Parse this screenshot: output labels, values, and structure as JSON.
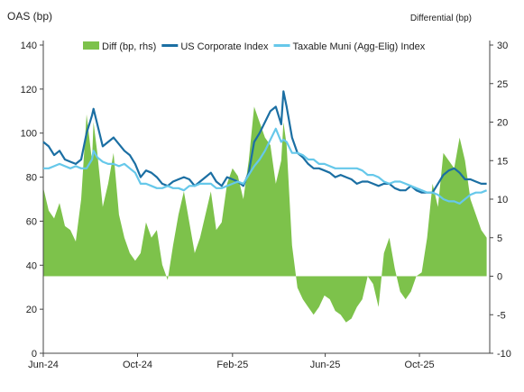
{
  "chart_data": {
    "type": "line",
    "title": "",
    "ylabel_left": "OAS (bp)",
    "ylabel_right": "Differential (bp)",
    "ylim_left": [
      0,
      140
    ],
    "ylim_right": [
      -10,
      30
    ],
    "yticks_left": [
      "0",
      "20",
      "40",
      "60",
      "80",
      "100",
      "120",
      "140"
    ],
    "yticks_right": [
      "-10",
      "-5",
      "0",
      "5",
      "10",
      "15",
      "20",
      "25",
      "30"
    ],
    "xlim": [
      "2024-06-01",
      "2025-12-31"
    ],
    "xticks": [
      {
        "label": "Jun-24",
        "date": "2024-06-01"
      },
      {
        "label": "Oct-24",
        "date": "2024-10-01"
      },
      {
        "label": "Feb-25",
        "date": "2025-02-01"
      },
      {
        "label": "Jun-25",
        "date": "2025-06-01"
      },
      {
        "label": "Oct-25",
        "date": "2025-10-01"
      }
    ],
    "legend_position": "top",
    "grid": false,
    "series": [
      {
        "name": "Diff (bp, rhs)",
        "kind": "area",
        "axis": "right",
        "color": "#7dc24b",
        "x": [
          "2024-06-01",
          "2024-06-08",
          "2024-06-15",
          "2024-06-22",
          "2024-06-29",
          "2024-07-06",
          "2024-07-13",
          "2024-07-20",
          "2024-07-27",
          "2024-08-03",
          "2024-08-05",
          "2024-08-10",
          "2024-08-17",
          "2024-08-24",
          "2024-08-31",
          "2024-09-07",
          "2024-09-14",
          "2024-09-21",
          "2024-09-28",
          "2024-10-05",
          "2024-10-12",
          "2024-10-19",
          "2024-10-26",
          "2024-11-02",
          "2024-11-09",
          "2024-11-16",
          "2024-11-23",
          "2024-11-30",
          "2024-12-07",
          "2024-12-14",
          "2024-12-21",
          "2024-12-28",
          "2025-01-04",
          "2025-01-11",
          "2025-01-18",
          "2025-01-25",
          "2025-02-01",
          "2025-02-08",
          "2025-02-15",
          "2025-02-22",
          "2025-03-01",
          "2025-03-08",
          "2025-03-15",
          "2025-03-22",
          "2025-03-29",
          "2025-04-05",
          "2025-04-08",
          "2025-04-12",
          "2025-04-19",
          "2025-04-26",
          "2025-05-03",
          "2025-05-10",
          "2025-05-17",
          "2025-05-24",
          "2025-05-31",
          "2025-06-07",
          "2025-06-14",
          "2025-06-21",
          "2025-06-28",
          "2025-07-05",
          "2025-07-12",
          "2025-07-19",
          "2025-07-26",
          "2025-08-02",
          "2025-08-09",
          "2025-08-16",
          "2025-08-23",
          "2025-08-30",
          "2025-09-06",
          "2025-09-13",
          "2025-09-20",
          "2025-09-27",
          "2025-10-04",
          "2025-10-11",
          "2025-10-18",
          "2025-10-25",
          "2025-11-01",
          "2025-11-08",
          "2025-11-15",
          "2025-11-22",
          "2025-11-29",
          "2025-12-06",
          "2025-12-13",
          "2025-12-20",
          "2025-12-27"
        ],
        "values": [
          11.5,
          8.5,
          7.5,
          9.5,
          6.5,
          6,
          4.5,
          10,
          21,
          15,
          20,
          16,
          9,
          12,
          16,
          8,
          5,
          3,
          2,
          3,
          7,
          5,
          6,
          1.5,
          -0.5,
          4,
          8,
          11,
          7,
          3,
          5,
          8,
          11,
          6,
          7,
          12,
          14,
          13,
          10,
          15,
          22,
          20,
          18,
          17,
          12,
          15,
          20,
          17,
          4,
          -1.5,
          -3,
          -4,
          -5,
          -4,
          -2.5,
          -3,
          -4.5,
          -5,
          -6,
          -5.5,
          -4,
          -3,
          0,
          -1,
          -4,
          3,
          5,
          1,
          -2,
          -3,
          -2,
          0,
          0.5,
          5,
          12,
          9,
          16,
          15,
          14,
          18,
          15,
          10,
          8,
          6,
          5
        ]
      },
      {
        "name": "US Corporate Index",
        "kind": "line",
        "axis": "left",
        "color": "#1b6fa3",
        "x": [
          "2024-06-01",
          "2024-06-08",
          "2024-06-15",
          "2024-06-22",
          "2024-06-29",
          "2024-07-06",
          "2024-07-13",
          "2024-07-20",
          "2024-07-27",
          "2024-08-03",
          "2024-08-05",
          "2024-08-10",
          "2024-08-17",
          "2024-08-24",
          "2024-08-31",
          "2024-09-07",
          "2024-09-14",
          "2024-09-21",
          "2024-09-28",
          "2024-10-05",
          "2024-10-12",
          "2024-10-19",
          "2024-10-26",
          "2024-11-02",
          "2024-11-09",
          "2024-11-16",
          "2024-11-23",
          "2024-11-30",
          "2024-12-07",
          "2024-12-14",
          "2024-12-21",
          "2024-12-28",
          "2025-01-04",
          "2025-01-11",
          "2025-01-18",
          "2025-01-25",
          "2025-02-01",
          "2025-02-08",
          "2025-02-15",
          "2025-02-22",
          "2025-03-01",
          "2025-03-08",
          "2025-03-15",
          "2025-03-22",
          "2025-03-29",
          "2025-04-05",
          "2025-04-08",
          "2025-04-12",
          "2025-04-19",
          "2025-04-26",
          "2025-05-03",
          "2025-05-10",
          "2025-05-17",
          "2025-05-24",
          "2025-05-31",
          "2025-06-07",
          "2025-06-14",
          "2025-06-21",
          "2025-06-28",
          "2025-07-05",
          "2025-07-12",
          "2025-07-19",
          "2025-07-26",
          "2025-08-02",
          "2025-08-09",
          "2025-08-16",
          "2025-08-23",
          "2025-08-30",
          "2025-09-06",
          "2025-09-13",
          "2025-09-20",
          "2025-09-27",
          "2025-10-04",
          "2025-10-11",
          "2025-10-18",
          "2025-10-25",
          "2025-11-01",
          "2025-11-08",
          "2025-11-15",
          "2025-11-22",
          "2025-11-29",
          "2025-12-06",
          "2025-12-13",
          "2025-12-20",
          "2025-12-27"
        ],
        "values": [
          96,
          94,
          90,
          92,
          88,
          87,
          86,
          88,
          100,
          108,
          111,
          104,
          94,
          96,
          98,
          95,
          92,
          90,
          86,
          80,
          83,
          82,
          80,
          77,
          76,
          78,
          79,
          80,
          79,
          76,
          78,
          80,
          82,
          78,
          76,
          80,
          79,
          78,
          76,
          82,
          96,
          100,
          105,
          110,
          112,
          104,
          119,
          112,
          98,
          91,
          89,
          86,
          84,
          84,
          83,
          82,
          80,
          81,
          80,
          79,
          77,
          78,
          78,
          77,
          76,
          77,
          77,
          75,
          74,
          74,
          76,
          74,
          73,
          73,
          73,
          77,
          81,
          83,
          84,
          82,
          79,
          79,
          78,
          77,
          77
        ]
      },
      {
        "name": "Taxable Muni (Agg-Elig) Index",
        "kind": "line",
        "axis": "left",
        "color": "#66c8ea",
        "x": [
          "2024-06-01",
          "2024-06-08",
          "2024-06-15",
          "2024-06-22",
          "2024-06-29",
          "2024-07-06",
          "2024-07-13",
          "2024-07-20",
          "2024-07-27",
          "2024-08-03",
          "2024-08-05",
          "2024-08-10",
          "2024-08-17",
          "2024-08-24",
          "2024-08-31",
          "2024-09-07",
          "2024-09-14",
          "2024-09-21",
          "2024-09-28",
          "2024-10-05",
          "2024-10-12",
          "2024-10-19",
          "2024-10-26",
          "2024-11-02",
          "2024-11-09",
          "2024-11-16",
          "2024-11-23",
          "2024-11-30",
          "2024-12-07",
          "2024-12-14",
          "2024-12-21",
          "2024-12-28",
          "2025-01-04",
          "2025-01-11",
          "2025-01-18",
          "2025-01-25",
          "2025-02-01",
          "2025-02-08",
          "2025-02-15",
          "2025-02-22",
          "2025-03-01",
          "2025-03-08",
          "2025-03-15",
          "2025-03-22",
          "2025-03-29",
          "2025-04-05",
          "2025-04-08",
          "2025-04-12",
          "2025-04-19",
          "2025-04-26",
          "2025-05-03",
          "2025-05-10",
          "2025-05-17",
          "2025-05-24",
          "2025-05-31",
          "2025-06-07",
          "2025-06-14",
          "2025-06-21",
          "2025-06-28",
          "2025-07-05",
          "2025-07-12",
          "2025-07-19",
          "2025-07-26",
          "2025-08-02",
          "2025-08-09",
          "2025-08-16",
          "2025-08-23",
          "2025-08-30",
          "2025-09-06",
          "2025-09-13",
          "2025-09-20",
          "2025-09-27",
          "2025-10-04",
          "2025-10-11",
          "2025-10-18",
          "2025-10-25",
          "2025-11-01",
          "2025-11-08",
          "2025-11-15",
          "2025-11-22",
          "2025-11-29",
          "2025-12-06",
          "2025-12-13",
          "2025-12-20",
          "2025-12-27"
        ],
        "values": [
          84,
          84,
          85,
          86,
          85,
          84,
          85,
          84,
          84,
          88,
          92,
          89,
          87,
          86,
          86,
          85,
          86,
          84,
          82,
          77,
          77,
          76,
          75,
          75,
          76,
          75,
          75,
          74,
          76,
          76,
          77,
          77,
          77,
          75,
          75,
          76,
          77,
          78,
          77,
          81,
          85,
          88,
          92,
          97,
          102,
          96,
          97,
          96,
          91,
          91,
          90,
          88,
          88,
          86,
          86,
          85,
          84,
          84,
          84,
          84,
          84,
          83,
          81,
          81,
          80,
          78,
          77,
          78,
          78,
          77,
          76,
          75,
          74,
          73,
          73,
          72,
          70,
          69,
          69,
          68,
          70,
          72,
          73,
          73,
          74
        ]
      }
    ]
  }
}
